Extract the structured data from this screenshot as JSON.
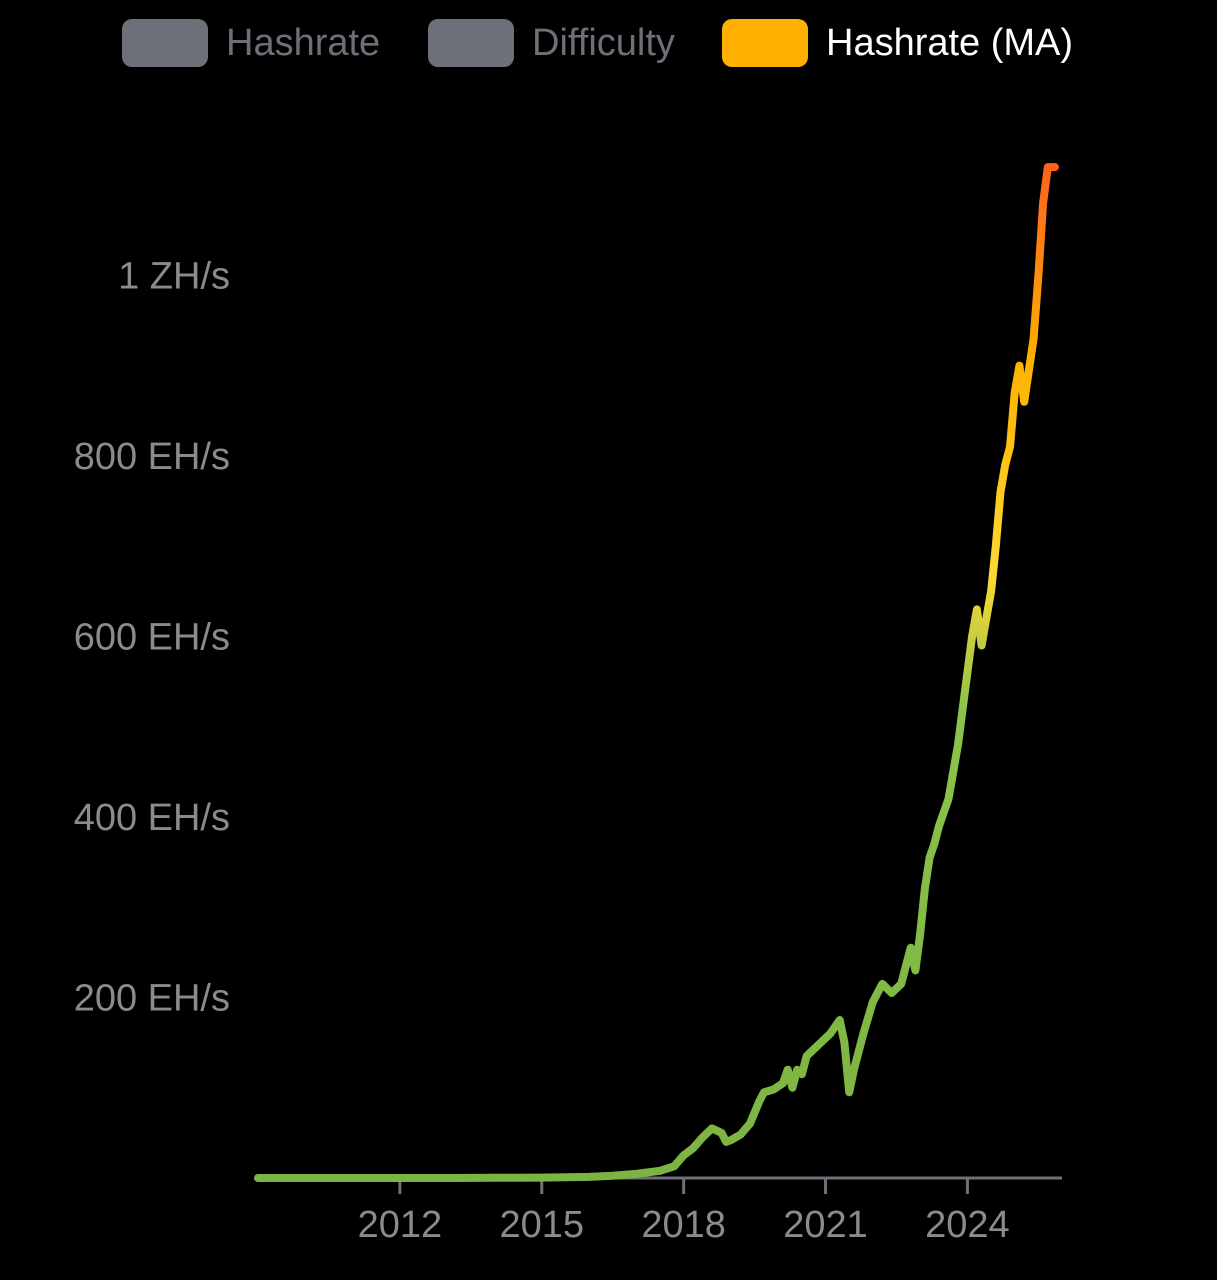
{
  "legend": {
    "items": [
      {
        "label": "Hashrate",
        "color": "#6e7079",
        "active": false
      },
      {
        "label": "Difficulty",
        "color": "#6e7079",
        "active": false
      },
      {
        "label": "Hashrate (MA)",
        "color": "#ffb000",
        "active": true
      }
    ],
    "inactive_text_color": "#6e7079",
    "active_text_color": "#ffffff"
  },
  "chart_data": {
    "type": "line",
    "title": "",
    "xlabel": "",
    "ylabel": "",
    "x_ticks": [
      "2012",
      "2015",
      "2018",
      "2021",
      "2024"
    ],
    "y_ticks": [
      "200 EH/s",
      "400 EH/s",
      "600 EH/s",
      "800 EH/s",
      "1 ZH/s"
    ],
    "xlim": [
      2009,
      2026
    ],
    "ylim": [
      0,
      1150
    ],
    "grid": false,
    "legend_position": "top-center",
    "series": [
      {
        "name": "Hashrate (MA)",
        "color_gradient": [
          "#7cb342",
          "#8bc34a",
          "#fdd835",
          "#ffb300",
          "#ff5722"
        ],
        "x": [
          2009.0,
          2010.0,
          2011.0,
          2012.0,
          2013.0,
          2014.0,
          2015.0,
          2016.0,
          2016.5,
          2017.0,
          2017.5,
          2017.8,
          2018.0,
          2018.2,
          2018.4,
          2018.6,
          2018.8,
          2018.9,
          2019.0,
          2019.2,
          2019.4,
          2019.6,
          2019.7,
          2019.9,
          2020.1,
          2020.2,
          2020.3,
          2020.4,
          2020.5,
          2020.6,
          2020.7,
          2020.9,
          2021.0,
          2021.1,
          2021.3,
          2021.4,
          2021.5,
          2021.6,
          2021.8,
          2022.0,
          2022.2,
          2022.4,
          2022.6,
          2022.8,
          2022.9,
          2023.0,
          2023.1,
          2023.2,
          2023.3,
          2023.4,
          2023.6,
          2023.8,
          2023.9,
          2024.0,
          2024.1,
          2024.2,
          2024.3,
          2024.4,
          2024.5,
          2024.6,
          2024.7,
          2024.8,
          2024.9,
          2025.0,
          2025.1,
          2025.2,
          2025.3,
          2025.4,
          2025.5,
          2025.6,
          2025.7,
          2025.8,
          2025.85
        ],
        "y": [
          0.0,
          0.0,
          0.0,
          0.02,
          0.05,
          0.2,
          0.4,
          1.2,
          2.5,
          4.5,
          8.0,
          13.0,
          25.0,
          33.0,
          45.0,
          55.0,
          50.0,
          40.0,
          42.0,
          48.0,
          60.0,
          85.0,
          95.0,
          98.0,
          105.0,
          120.0,
          100.0,
          120.0,
          115.0,
          135.0,
          140.0,
          150.0,
          155.0,
          160.0,
          175.0,
          150.0,
          95.0,
          120.0,
          160.0,
          195.0,
          215.0,
          205.0,
          215.0,
          255.0,
          230.0,
          270.0,
          320.0,
          355.0,
          370.0,
          390.0,
          420.0,
          480.0,
          520.0,
          560.0,
          600.0,
          630.0,
          590.0,
          620.0,
          650.0,
          700.0,
          760.0,
          790.0,
          810.0,
          870.0,
          900.0,
          860.0,
          895.0,
          930.0,
          1000.0,
          1080.0,
          1120.0,
          1120.0,
          1120.0
        ]
      }
    ]
  }
}
